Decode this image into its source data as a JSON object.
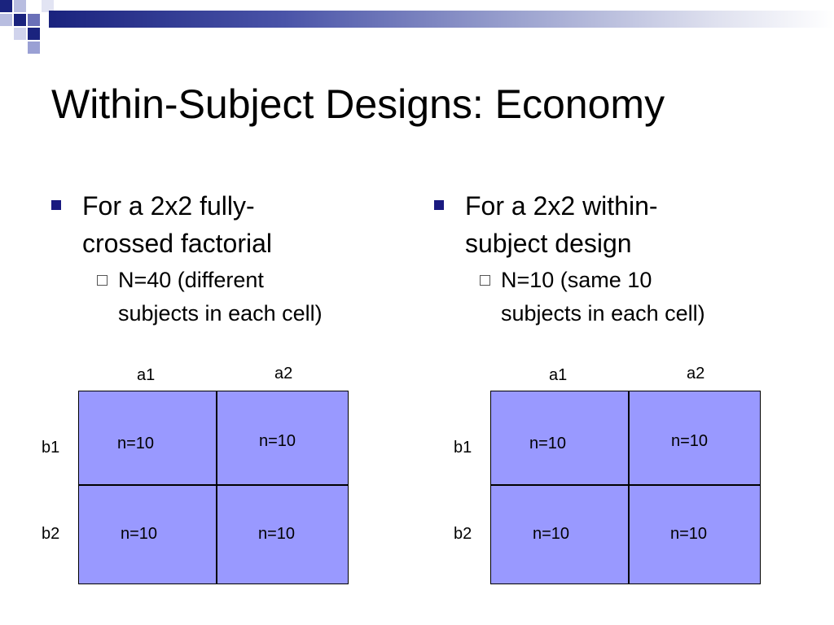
{
  "title": "Within-Subject Designs: Economy",
  "colors": {
    "cell_fill": "#9999ff",
    "bullet": "#1a1a80",
    "header_bar": "#1a237e"
  },
  "left": {
    "bullet_lines": [
      "For a 2x2 fully-",
      "crossed factorial"
    ],
    "sub_lines": [
      "N=40 (different",
      "subjects in each cell)"
    ],
    "grid": {
      "col_labels": [
        "a1",
        "a2"
      ],
      "row_labels": [
        "b1",
        "b2"
      ],
      "cells": [
        "n=10",
        "n=10",
        "n=10",
        "n=10"
      ]
    }
  },
  "right": {
    "bullet_lines": [
      "For a 2x2 within-",
      "subject design"
    ],
    "sub_lines": [
      "N=10 (same 10",
      "subjects in each cell)"
    ],
    "grid": {
      "col_labels": [
        "a1",
        "a2"
      ],
      "row_labels": [
        "b1",
        "b2"
      ],
      "cells": [
        "n=10",
        "n=10",
        "n=10",
        "n=10"
      ]
    }
  }
}
